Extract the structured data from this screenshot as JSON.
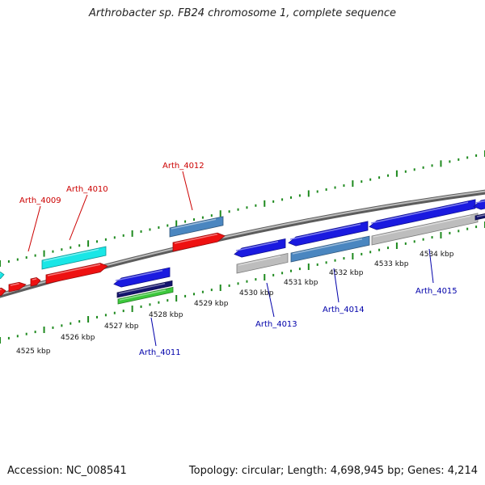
{
  "title": "Arthrobacter sp. FB24 chromosome 1, complete sequence",
  "accession": "Accession: NC_008541",
  "summary": "Topology: circular; Length: 4,698,945 bp; Genes: 4,214",
  "colors": {
    "backbone": "#8a8a8a",
    "ticks": "#1e8a1e",
    "forward_label": "#cc0000",
    "reverse_label": "#0000aa",
    "cyan": "#19e6e6",
    "red": "#ee1111",
    "steelblue": "#4a86c0",
    "blue": "#1a1ae0",
    "navy": "#14146e",
    "green": "#3cc83c",
    "gray": "#bdbdbd"
  },
  "scale_labels": [
    "4525 kbp",
    "4526 kbp",
    "4527 kbp",
    "4528 kbp",
    "4529 kbp",
    "4530 kbp",
    "4531 kbp",
    "4532 kbp",
    "4533 kbp",
    "4534 kbp"
  ],
  "gene_labels": {
    "forward": [
      "Arth_4009",
      "Arth_4010",
      "Arth_4012"
    ],
    "reverse": [
      "Arth_4011",
      "Arth_4013",
      "Arth_4014",
      "Arth_4015"
    ]
  }
}
